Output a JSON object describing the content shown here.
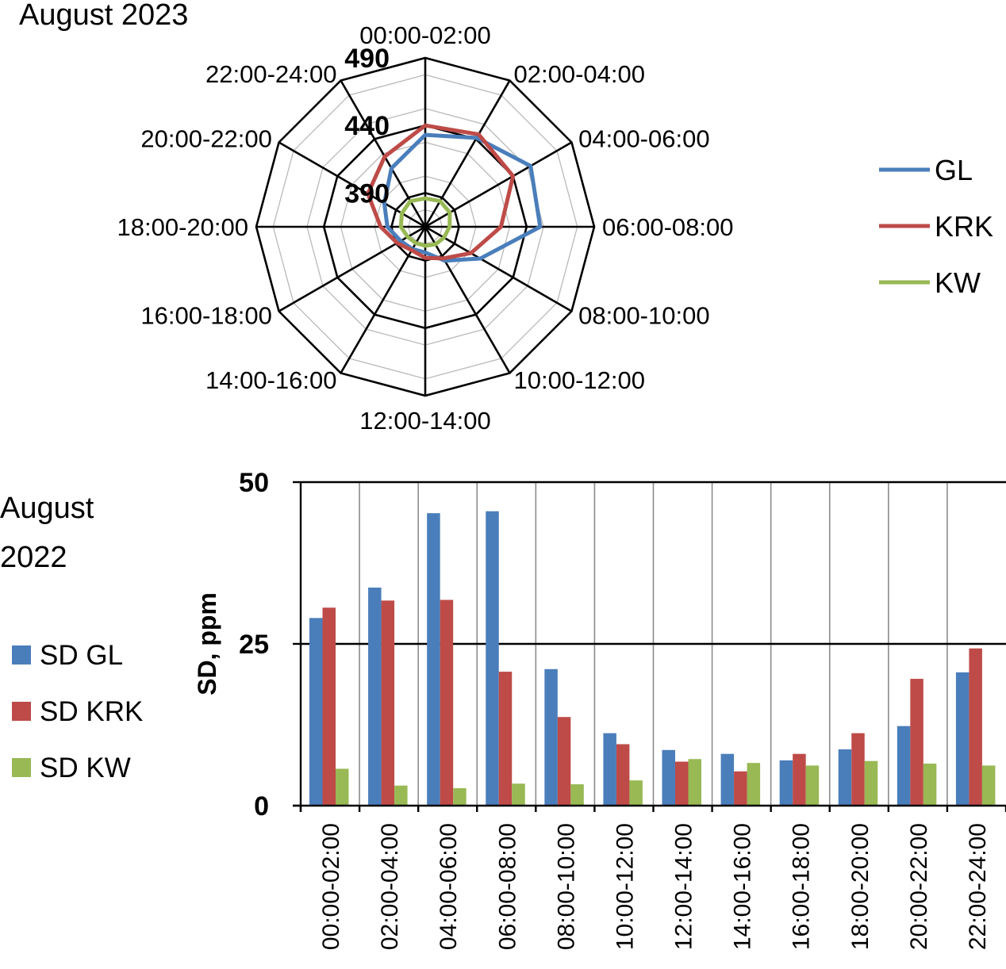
{
  "chart_data": [
    {
      "type": "radar",
      "title": "August 2023",
      "categories": [
        "00:00-02:00",
        "02:00-04:00",
        "04:00-06:00",
        "06:00-08:00",
        "08:00-10:00",
        "10:00-12:00",
        "12:00-14:00",
        "14:00-16:00",
        "16:00-18:00",
        "18:00-20:00",
        "20:00-22:00",
        "22:00-24:00"
      ],
      "rlim": [
        365,
        490
      ],
      "rticks": [
        {
          "value": 390,
          "label": "390"
        },
        {
          "value": 440,
          "label": "440"
        },
        {
          "value": 490,
          "label": "490"
        }
      ],
      "grid": true,
      "legend_position": "right",
      "series": [
        {
          "name": "GL",
          "color": "#4a7ebb",
          "values": [
            433,
            441,
            455,
            450,
            412,
            394,
            384,
            384,
            386,
            393,
            400,
            415
          ]
        },
        {
          "name": "KRK",
          "color": "#be4b48",
          "values": [
            440,
            444,
            440,
            421,
            404,
            392,
            388,
            385,
            389,
            398,
            414,
            425
          ]
        },
        {
          "name": "KW",
          "color": "#98b954",
          "values": [
            386,
            387,
            386,
            383,
            381,
            380,
            379,
            379,
            380,
            383,
            385,
            387
          ]
        }
      ]
    },
    {
      "type": "bar",
      "title": "August 2022",
      "categories": [
        "00:00-02:00",
        "02:00-04:00",
        "04:00-06:00",
        "06:00-08:00",
        "08:00-10:00",
        "10:00-12:00",
        "12:00-14:00",
        "14:00-16:00",
        "16:00-18:00",
        "18:00-20:00",
        "20:00-22:00",
        "22:00-24:00"
      ],
      "ylabel": "SD, ppm",
      "ylim": [
        0,
        50
      ],
      "yticks": [
        0,
        25,
        50
      ],
      "grid": true,
      "legend_position": "left",
      "series": [
        {
          "name": "SD GL",
          "color": "#4a7ebb",
          "values": [
            29.0,
            33.7,
            45.2,
            45.5,
            21.1,
            11.2,
            8.6,
            8.0,
            7.0,
            8.7,
            12.3,
            20.6
          ]
        },
        {
          "name": "SD KRK",
          "color": "#be4b48",
          "values": [
            30.6,
            31.7,
            31.8,
            20.7,
            13.7,
            9.5,
            6.8,
            5.3,
            8.0,
            11.2,
            19.6,
            24.3
          ]
        },
        {
          "name": "SD KW",
          "color": "#98b954",
          "values": [
            5.7,
            3.1,
            2.7,
            3.4,
            3.3,
            3.9,
            7.2,
            6.6,
            6.2,
            6.9,
            6.5,
            6.2
          ]
        }
      ]
    }
  ]
}
